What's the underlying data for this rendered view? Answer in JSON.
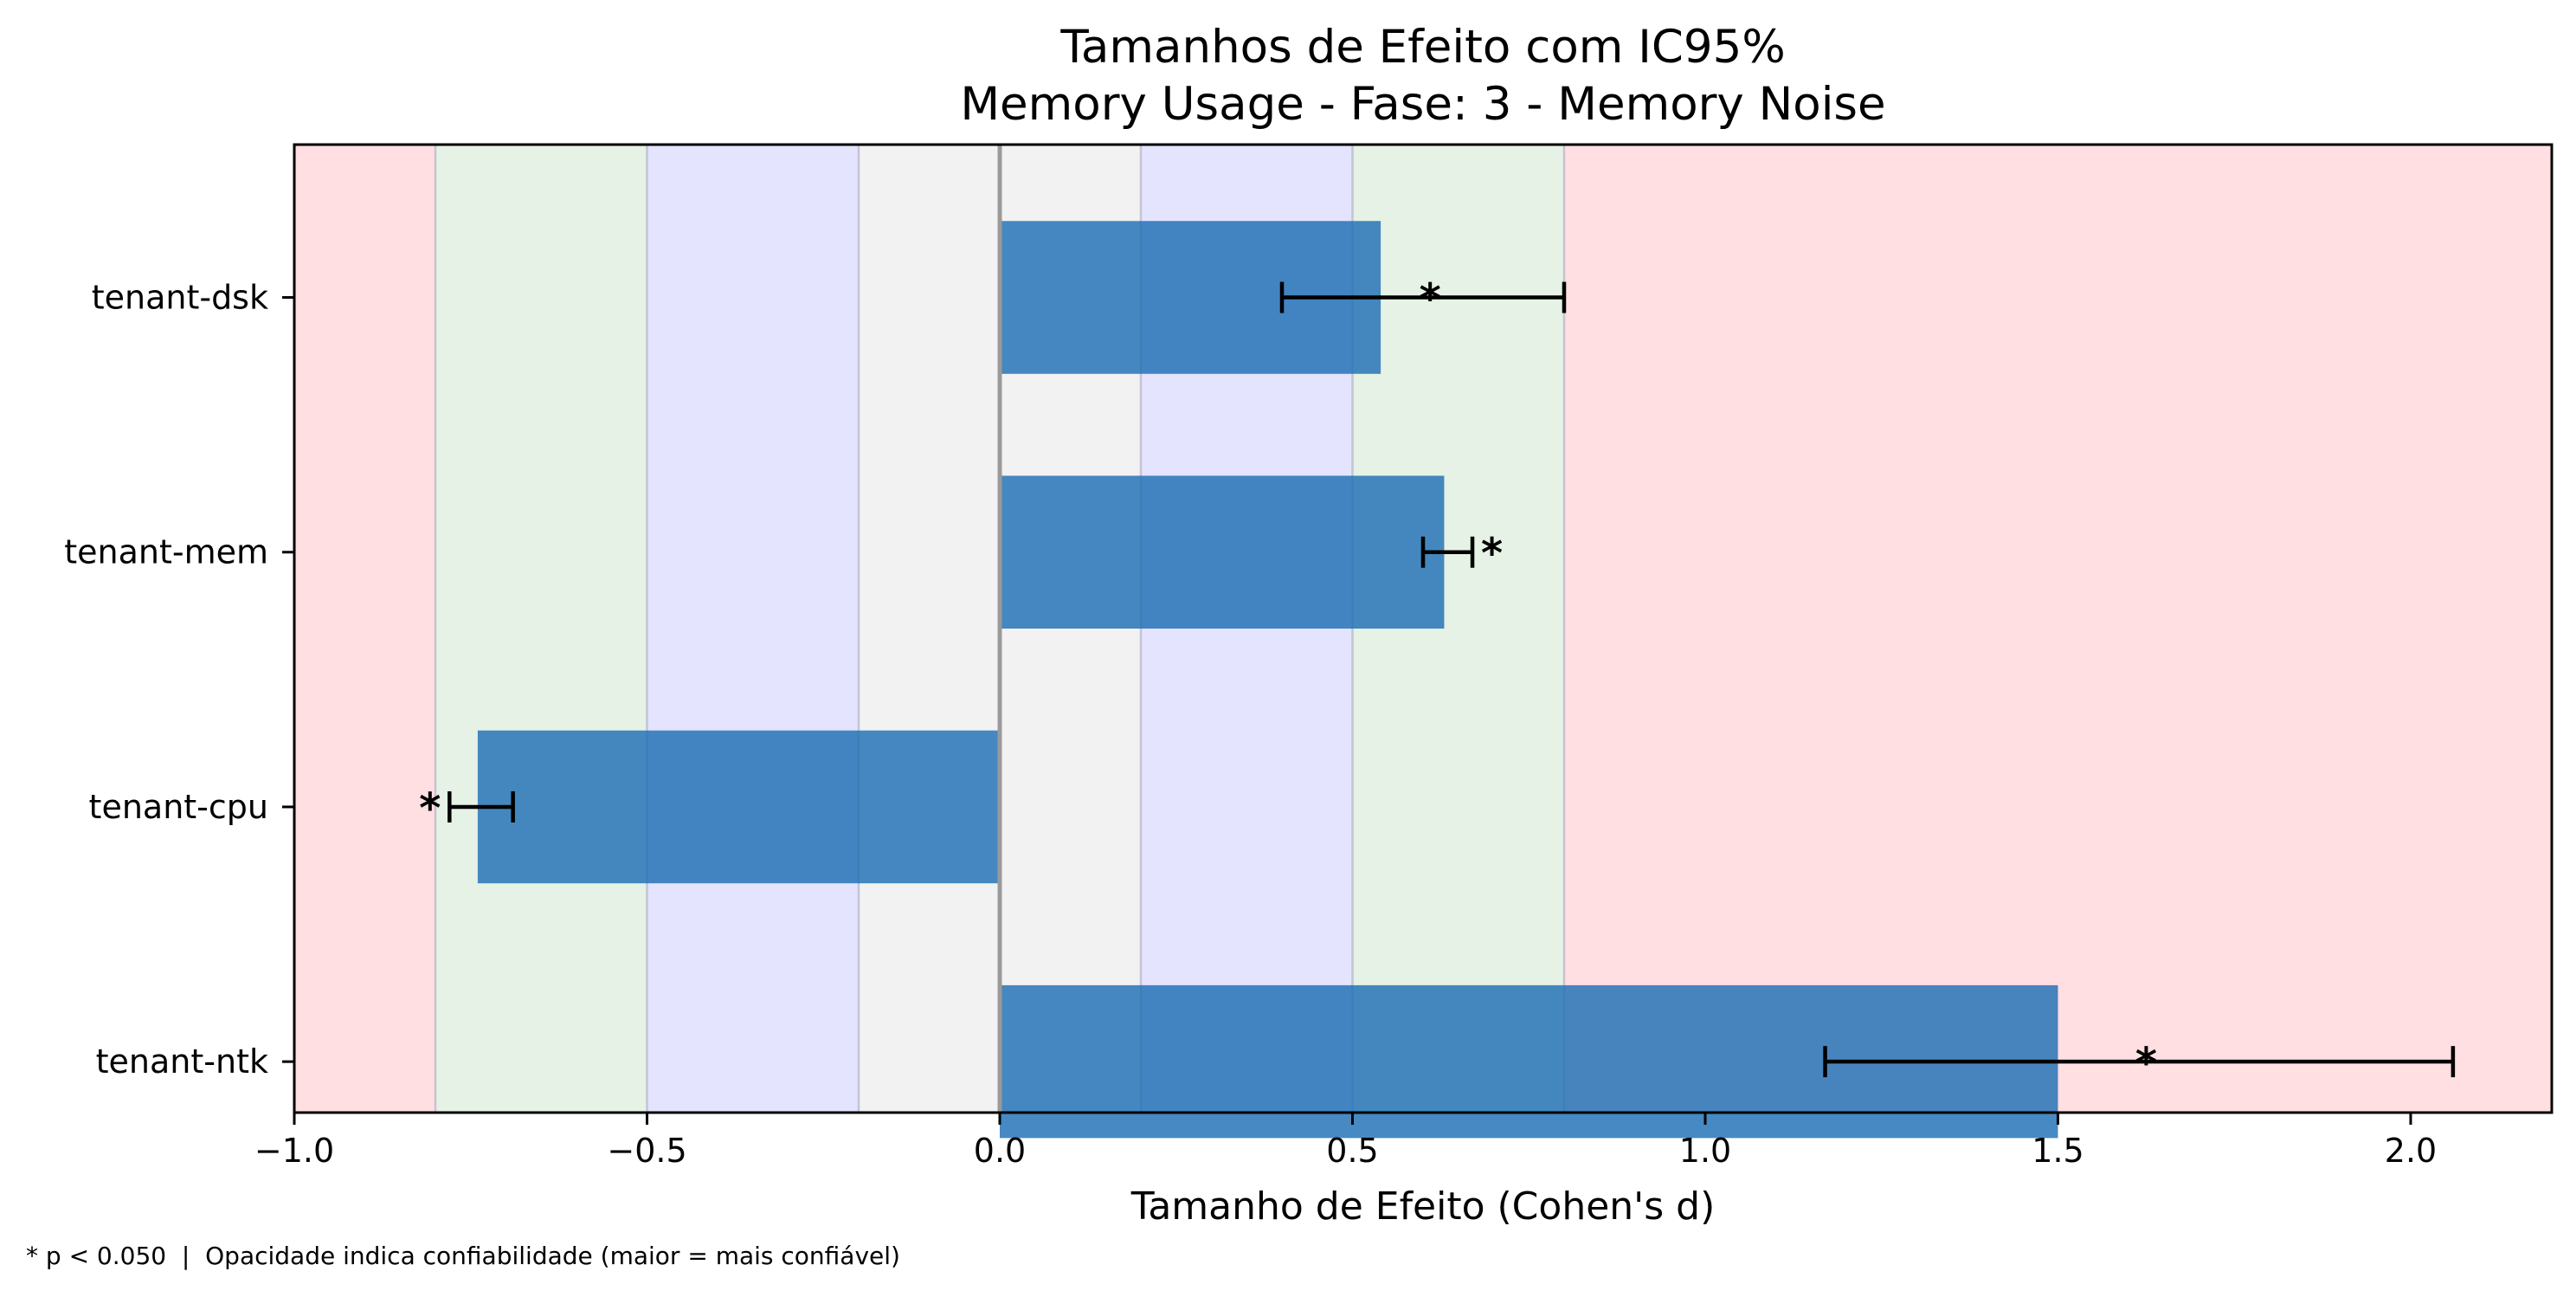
{
  "chart_data": {
    "type": "bar",
    "orientation": "horizontal",
    "title": "Tamanhos de Efeito com IC95%",
    "subtitle": "Memory Usage - Fase: 3 - Memory Noise",
    "xlabel": "Tamanho de Efeito (Cohen's d)",
    "ylabel": "",
    "xlim": [
      -1.0,
      2.2
    ],
    "xticks": [
      -1.0,
      -0.5,
      0.0,
      0.5,
      1.0,
      1.5,
      2.0
    ],
    "xtick_labels": [
      "−1.0",
      "−0.5",
      "0.0",
      "0.5",
      "1.0",
      "1.5",
      "2.0"
    ],
    "categories": [
      "tenant-dsk",
      "tenant-mem",
      "tenant-cpu",
      "tenant-ntk"
    ],
    "values": [
      0.54,
      0.63,
      -0.74,
      1.5
    ],
    "ci_lower": [
      0.4,
      0.6,
      -0.78,
      1.17
    ],
    "ci_upper": [
      0.8,
      0.67,
      -0.69,
      2.06
    ],
    "significant": [
      true,
      true,
      true,
      true
    ],
    "significance_marker": "*",
    "bar_color": "#1f6fb4",
    "effect_bands": [
      {
        "from": -1.0,
        "to": -0.8,
        "color": "#ffdfe2"
      },
      {
        "from": -0.8,
        "to": -0.5,
        "color": "#e5f2e5"
      },
      {
        "from": -0.5,
        "to": -0.2,
        "color": "#e4e4ff"
      },
      {
        "from": -0.2,
        "to": 0.2,
        "color": "#f2f2f2"
      },
      {
        "from": 0.2,
        "to": 0.5,
        "color": "#e4e4ff"
      },
      {
        "from": 0.5,
        "to": 0.8,
        "color": "#e5f2e5"
      },
      {
        "from": 0.8,
        "to": 2.2,
        "color": "#ffdfe2"
      }
    ],
    "grid": false,
    "footnote": "* p < 0.050  |  Opacidade indica confiabilidade (maior = mais confiável)"
  }
}
